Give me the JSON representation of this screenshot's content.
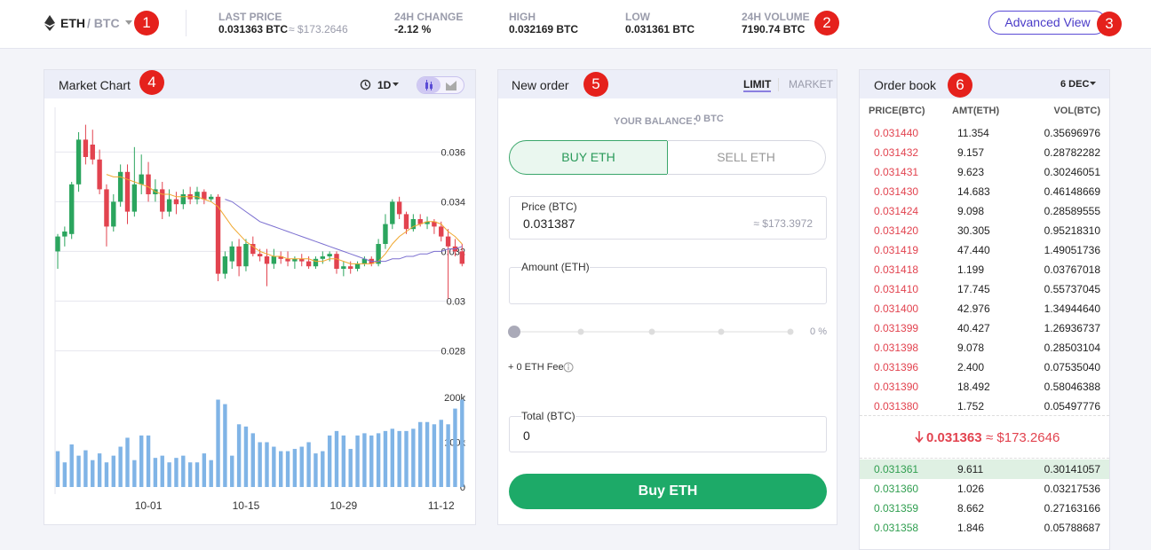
{
  "header": {
    "base": "ETH",
    "quote": "/ BTC",
    "stats": [
      {
        "label": "LAST PRICE",
        "value": "0.031363 BTC",
        "sub": "≈ $173.2646"
      },
      {
        "label": "24H CHANGE",
        "value": "-2.12 %"
      },
      {
        "label": "HIGH",
        "value": "0.032169 BTC"
      },
      {
        "label": "LOW",
        "value": "0.031361 BTC"
      },
      {
        "label": "24H VOLUME",
        "value": "7190.74 BTC"
      }
    ],
    "advanced": "Advanced View"
  },
  "badges": [
    "1",
    "2",
    "3",
    "4",
    "5",
    "6"
  ],
  "market_chart": {
    "title": "Market Chart",
    "interval": "1D"
  },
  "chart_data": {
    "type": "candlestick",
    "categories": [
      null,
      null,
      null,
      null,
      null,
      null,
      null,
      null,
      null,
      null,
      null,
      null,
      null,
      "10-01",
      null,
      null,
      null,
      null,
      null,
      null,
      null,
      null,
      null,
      null,
      null,
      null,
      null,
      "10-15",
      null,
      null,
      null,
      null,
      null,
      null,
      null,
      null,
      null,
      null,
      null,
      null,
      null,
      "10-29",
      null,
      null,
      null,
      null,
      null,
      null,
      null,
      null,
      null,
      null,
      null,
      null,
      null,
      "11-12",
      null,
      null,
      null
    ],
    "ohlc": [
      [
        0.032,
        0.0327,
        0.0313,
        0.0326
      ],
      [
        0.0326,
        0.033,
        0.0322,
        0.0328
      ],
      [
        0.0327,
        0.0348,
        0.0325,
        0.0347
      ],
      [
        0.0347,
        0.0368,
        0.0344,
        0.0365
      ],
      [
        0.0365,
        0.0371,
        0.0355,
        0.0358
      ],
      [
        0.0363,
        0.0369,
        0.0355,
        0.0357
      ],
      [
        0.0357,
        0.0361,
        0.0343,
        0.0345
      ],
      [
        0.0345,
        0.0347,
        0.0322,
        0.033
      ],
      [
        0.033,
        0.0343,
        0.0328,
        0.034
      ],
      [
        0.034,
        0.0355,
        0.0338,
        0.0352
      ],
      [
        0.0352,
        0.0355,
        0.0331,
        0.0336
      ],
      [
        0.0336,
        0.0362,
        0.0334,
        0.0347
      ],
      [
        0.0347,
        0.0359,
        0.0343,
        0.0351
      ],
      [
        0.0351,
        0.0356,
        0.034,
        0.0343
      ],
      [
        0.0343,
        0.0349,
        0.034,
        0.0345
      ],
      [
        0.0345,
        0.0348,
        0.0333,
        0.0336
      ],
      [
        0.0336,
        0.0345,
        0.0334,
        0.0341
      ],
      [
        0.0341,
        0.0344,
        0.0335,
        0.0339
      ],
      [
        0.0339,
        0.0345,
        0.0337,
        0.0343
      ],
      [
        0.0343,
        0.0346,
        0.0339,
        0.0341
      ],
      [
        0.0341,
        0.0346,
        0.0339,
        0.0344
      ],
      [
        0.0344,
        0.0345,
        0.0339,
        0.0341
      ],
      [
        0.0341,
        0.0343,
        0.034,
        0.0342
      ],
      [
        0.0342,
        0.0343,
        0.0308,
        0.0311
      ],
      [
        0.0311,
        0.032,
        0.0309,
        0.0318
      ],
      [
        0.0316,
        0.0324,
        0.0313,
        0.0322
      ],
      [
        0.0322,
        0.0325,
        0.031,
        0.0314
      ],
      [
        0.0314,
        0.0325,
        0.0312,
        0.0323
      ],
      [
        0.0323,
        0.0326,
        0.0318,
        0.0319
      ],
      [
        0.0319,
        0.0321,
        0.0316,
        0.0318
      ],
      [
        0.0318,
        0.0321,
        0.0306,
        0.0315
      ],
      [
        0.0315,
        0.0321,
        0.0313,
        0.0318
      ],
      [
        0.0318,
        0.032,
        0.0315,
        0.0317
      ],
      [
        0.0317,
        0.032,
        0.0314,
        0.0316
      ],
      [
        0.0316,
        0.0318,
        0.0313,
        0.0317
      ],
      [
        0.0317,
        0.0319,
        0.0314,
        0.0316
      ],
      [
        0.0316,
        0.0318,
        0.0313,
        0.0314
      ],
      [
        0.0314,
        0.0318,
        0.0313,
        0.0317
      ],
      [
        0.0317,
        0.032,
        0.0315,
        0.0318
      ],
      [
        0.0318,
        0.032,
        0.0316,
        0.0319
      ],
      [
        0.0319,
        0.032,
        0.0311,
        0.0313
      ],
      [
        0.0313,
        0.0316,
        0.031,
        0.0314
      ],
      [
        0.0314,
        0.0316,
        0.0311,
        0.0313
      ],
      [
        0.0313,
        0.0316,
        0.0312,
        0.0315
      ],
      [
        0.0315,
        0.0318,
        0.0314,
        0.0317
      ],
      [
        0.0317,
        0.0318,
        0.0314,
        0.0315
      ],
      [
        0.0315,
        0.0325,
        0.0314,
        0.0323
      ],
      [
        0.0323,
        0.0335,
        0.0321,
        0.0331
      ],
      [
        0.0331,
        0.0341,
        0.0329,
        0.034
      ],
      [
        0.034,
        0.0342,
        0.0333,
        0.0335
      ],
      [
        0.0335,
        0.0336,
        0.0327,
        0.0329
      ],
      [
        0.0329,
        0.0335,
        0.0328,
        0.0333
      ],
      [
        0.0333,
        0.0335,
        0.033,
        0.0331
      ],
      [
        0.0331,
        0.0334,
        0.0329,
        0.0332
      ],
      [
        0.0332,
        0.0333,
        0.0327,
        0.033
      ],
      [
        0.033,
        0.0332,
        0.0324,
        0.0326
      ],
      [
        0.0326,
        0.0329,
        0.0301,
        0.0322
      ],
      [
        0.0322,
        0.0325,
        0.0318,
        0.032
      ],
      [
        0.032,
        0.0323,
        0.0314,
        0.0315
      ]
    ],
    "lines": [
      {
        "color": "#f0a830",
        "values": [
          null,
          null,
          null,
          null,
          null,
          null,
          null,
          0.0351,
          0.035,
          0.035,
          0.0349,
          0.0348,
          0.0347,
          0.0346,
          0.0344,
          0.0343,
          0.0343,
          0.0342,
          0.0342,
          0.0342,
          0.0342,
          0.0341,
          0.034,
          0.0338,
          0.0334,
          0.033,
          0.0327,
          0.0324,
          0.0322,
          0.032,
          0.0319,
          0.0318,
          0.0318,
          0.0317,
          0.0317,
          0.0317,
          0.0317,
          0.0316,
          0.0316,
          0.0317,
          0.0317,
          0.0316,
          0.0315,
          0.0315,
          0.0315,
          0.0315,
          0.0316,
          0.0319,
          0.0323,
          0.0326,
          0.0328,
          0.033,
          0.0331,
          0.0332,
          0.0332,
          0.0331,
          0.0328,
          0.0326,
          0.0323
        ]
      },
      {
        "color": "#7b6fd0",
        "values": [
          null,
          null,
          null,
          null,
          null,
          null,
          null,
          null,
          null,
          null,
          null,
          null,
          null,
          null,
          null,
          null,
          null,
          null,
          null,
          null,
          null,
          null,
          null,
          null,
          0.0341,
          0.034,
          0.0338,
          0.0336,
          0.0334,
          0.0332,
          0.0331,
          0.033,
          0.0329,
          0.0328,
          0.0327,
          0.0326,
          0.0325,
          0.0324,
          0.0323,
          0.0322,
          0.0321,
          0.032,
          0.0319,
          0.0318,
          0.0317,
          0.0316,
          0.0316,
          0.0316,
          0.0317,
          0.0317,
          0.0318,
          0.0318,
          0.0319,
          0.0319,
          0.032,
          0.032,
          0.0321,
          0.0321,
          0.0322
        ]
      }
    ],
    "volume": {
      "color": "#80b4e6",
      "axis": "y2",
      "values": [
        80000,
        55000,
        95000,
        70000,
        82000,
        60000,
        75000,
        55000,
        70000,
        90000,
        110000,
        60000,
        115000,
        115000,
        65000,
        70000,
        55000,
        65000,
        70000,
        55000,
        55000,
        75000,
        60000,
        195000,
        185000,
        70000,
        140000,
        135000,
        120000,
        100000,
        100000,
        90000,
        80000,
        80000,
        85000,
        90000,
        100000,
        75000,
        80000,
        115000,
        125000,
        115000,
        85000,
        115000,
        120000,
        115000,
        120000,
        125000,
        130000,
        125000,
        125000,
        130000,
        145000,
        145000,
        140000,
        150000,
        140000,
        175000,
        195000
      ]
    },
    "up_color": "#2ba55e",
    "down_color": "#e2434f",
    "ylim": [
      0.0278,
      0.0378
    ],
    "yticks": [
      0.036,
      0.034,
      0.032,
      0.03,
      0.028
    ],
    "y2lim": [
      0,
      215000
    ],
    "y2ticks": [
      {
        "value": 200000,
        "label": "200k"
      },
      {
        "value": 100000,
        "label": "100k"
      },
      0
    ],
    "grid": true
  },
  "new_order": {
    "title": "New order",
    "tabs": [
      "LIMIT",
      "MARKET"
    ],
    "balance_label": "YOUR BALANCE：",
    "balance": "0 BTC",
    "buy_tab": "BUY ETH",
    "sell_tab": "SELL ETH",
    "price_label": "Price (BTC)",
    "price": "0.031387",
    "price_usd": "≈ $173.3972",
    "amount_label": "Amount (ETH)",
    "percent": "0 %",
    "fee": "+ 0 ETH Fee",
    "total_label": "Total (BTC)",
    "total": "0",
    "button": "Buy ETH"
  },
  "order_book": {
    "title": "Order book",
    "decimals": "6 DEC",
    "columns": [
      "PRICE(BTC)",
      "AMT(ETH)",
      "VOL(BTC)"
    ],
    "asks": [
      [
        "0.031440",
        "11.354",
        "0.35696976"
      ],
      [
        "0.031432",
        "9.157",
        "0.28782282"
      ],
      [
        "0.031431",
        "9.623",
        "0.30246051"
      ],
      [
        "0.031430",
        "14.683",
        "0.46148669"
      ],
      [
        "0.031424",
        "9.098",
        "0.28589555"
      ],
      [
        "0.031420",
        "30.305",
        "0.95218310"
      ],
      [
        "0.031419",
        "47.440",
        "1.49051736"
      ],
      [
        "0.031418",
        "1.199",
        "0.03767018"
      ],
      [
        "0.031410",
        "17.745",
        "0.55737045"
      ],
      [
        "0.031400",
        "42.976",
        "1.34944640"
      ],
      [
        "0.031399",
        "40.427",
        "1.26936737"
      ],
      [
        "0.031398",
        "9.078",
        "0.28503104"
      ],
      [
        "0.031396",
        "2.400",
        "0.07535040"
      ],
      [
        "0.031390",
        "18.492",
        "0.58046388"
      ],
      [
        "0.031380",
        "1.752",
        "0.05497776"
      ]
    ],
    "mid_price": "0.031363",
    "mid_usd": "≈ $173.2646",
    "bids": [
      [
        "0.031361",
        "9.611",
        "0.30141057"
      ],
      [
        "0.031360",
        "1.026",
        "0.03217536"
      ],
      [
        "0.031359",
        "8.662",
        "0.27163166"
      ],
      [
        "0.031358",
        "1.846",
        "0.05788687"
      ]
    ]
  }
}
